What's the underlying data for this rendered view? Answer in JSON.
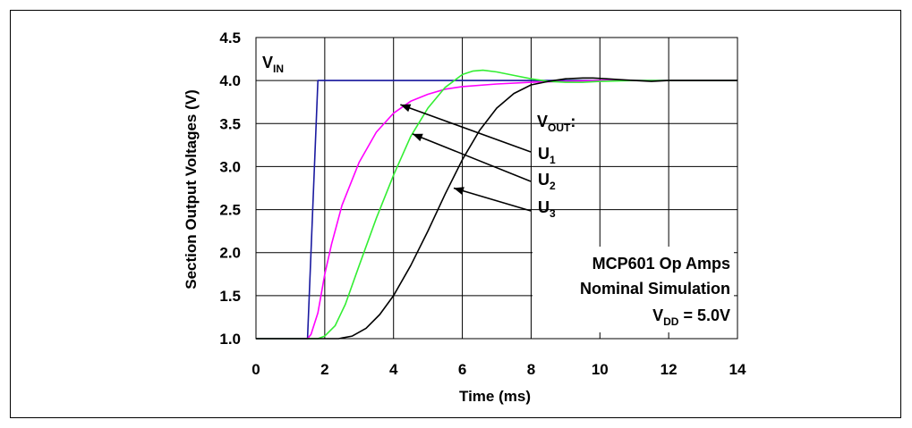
{
  "chart_data": {
    "type": "line",
    "title": "",
    "xlabel": "Time (ms)",
    "ylabel": "Section Output Voltages (V)",
    "xlim": [
      0,
      14
    ],
    "ylim": [
      1.0,
      4.5
    ],
    "x_ticks": [
      "0",
      "2",
      "4",
      "6",
      "8",
      "10",
      "12",
      "14"
    ],
    "y_ticks": [
      "1.0",
      "1.5",
      "2.0",
      "2.5",
      "3.0",
      "3.5",
      "4.0",
      "4.5"
    ],
    "grid": true,
    "series": [
      {
        "id": "vin",
        "color": "#1a1aa0",
        "x": [
          0,
          1.5,
          1.8,
          14
        ],
        "y": [
          1.0,
          1.0,
          4.0,
          4.0
        ]
      },
      {
        "id": "u1",
        "color": "#ff00ff",
        "x": [
          0,
          1.5,
          1.6,
          1.8,
          2.0,
          2.2,
          2.5,
          3.0,
          3.5,
          4.0,
          4.5,
          5.0,
          5.5,
          6.0,
          7.0,
          8.0,
          9.0,
          10.0,
          12.0,
          14.0
        ],
        "y": [
          1.0,
          1.0,
          1.05,
          1.3,
          1.75,
          2.1,
          2.55,
          3.05,
          3.4,
          3.62,
          3.76,
          3.84,
          3.9,
          3.93,
          3.96,
          3.98,
          3.99,
          4.0,
          4.0,
          4.0
        ]
      },
      {
        "id": "u2",
        "color": "#33ee33",
        "x": [
          0,
          1.8,
          2.0,
          2.3,
          2.6,
          3.0,
          3.5,
          4.0,
          4.5,
          5.0,
          5.5,
          6.0,
          6.3,
          6.6,
          7.0,
          7.5,
          8.0,
          8.5,
          9.0,
          9.5,
          10.0,
          11.0,
          12.0,
          14.0
        ],
        "y": [
          1.0,
          1.0,
          1.03,
          1.15,
          1.4,
          1.85,
          2.4,
          2.9,
          3.35,
          3.68,
          3.92,
          4.07,
          4.11,
          4.12,
          4.1,
          4.06,
          4.02,
          3.99,
          3.98,
          3.98,
          3.99,
          4.0,
          4.0,
          4.0
        ]
      },
      {
        "id": "u3",
        "color": "#000000",
        "x": [
          0,
          2.4,
          2.8,
          3.2,
          3.6,
          4.0,
          4.5,
          5.0,
          5.5,
          6.0,
          6.5,
          7.0,
          7.5,
          8.0,
          8.5,
          9.0,
          9.5,
          9.8,
          10.2,
          10.6,
          11.0,
          11.5,
          12.0,
          14.0
        ],
        "y": [
          1.0,
          1.0,
          1.03,
          1.12,
          1.28,
          1.5,
          1.85,
          2.25,
          2.68,
          3.08,
          3.42,
          3.68,
          3.85,
          3.95,
          3.99,
          4.02,
          4.03,
          4.03,
          4.02,
          4.01,
          4.0,
          3.99,
          4.0,
          4.0
        ]
      }
    ],
    "annotations": {
      "vin_label": {
        "main": "V",
        "sub": "IN"
      },
      "vout_label": {
        "main": "V",
        "sub": "OUT",
        "suffix": ":"
      },
      "u1_label": {
        "main": "U",
        "sub": "1"
      },
      "u2_label": {
        "main": "U",
        "sub": "2"
      },
      "u3_label": {
        "main": "U",
        "sub": "3"
      },
      "note_line1": "MCP601 Op Amps",
      "note_line2": "Nominal Simulation",
      "vdd_label": {
        "main": "V",
        "sub": "DD",
        "suffix": " = 5.0V"
      }
    }
  }
}
